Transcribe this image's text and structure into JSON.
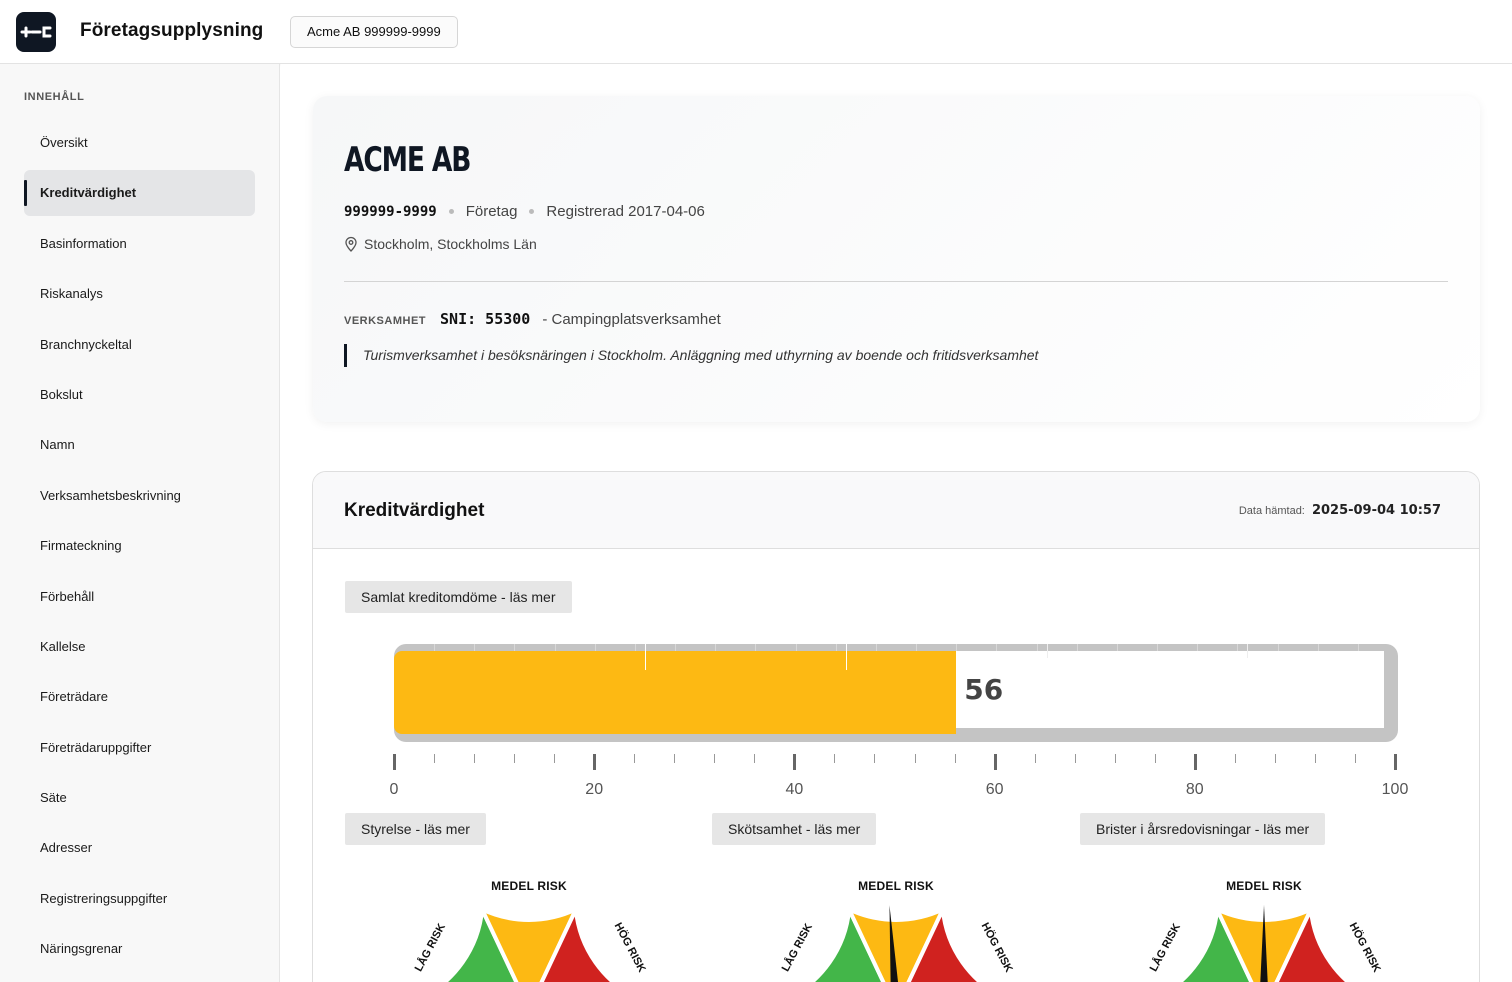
{
  "header": {
    "app_title": "Företagsupplysning",
    "company_chip": "Acme AB 999999-9999"
  },
  "sidebar": {
    "heading": "INNEHÅLL",
    "active_index": 1,
    "items": [
      {
        "label": "Översikt"
      },
      {
        "label": "Kreditvärdighet"
      },
      {
        "label": "Basinformation"
      },
      {
        "label": "Riskanalys"
      },
      {
        "label": "Branchnyckeltal"
      },
      {
        "label": "Bokslut"
      },
      {
        "label": "Namn"
      },
      {
        "label": "Verksamhetsbeskrivning"
      },
      {
        "label": "Firmateckning"
      },
      {
        "label": "Förbehåll"
      },
      {
        "label": "Kallelse"
      },
      {
        "label": "Företrädare"
      },
      {
        "label": "Företrädaruppgifter"
      },
      {
        "label": "Säte"
      },
      {
        "label": "Adresser"
      },
      {
        "label": "Registreringsuppgifter"
      },
      {
        "label": "Näringsgrenar"
      }
    ]
  },
  "company": {
    "name": "ACME AB",
    "org_nr": "999999-9999",
    "type": "Företag",
    "registered": "Registrerad 2017-04-06",
    "location": "Stockholm, Stockholms Län",
    "verksamhet_label": "VERKSAMHET",
    "sni": "SNI: 55300",
    "sni_description": "- Campingplatsverksamhet",
    "description": "Turismverksamhet i besöksnäringen i Stockholm. Anläggning med uthyrning av boende och fritidsverksamhet"
  },
  "kredit": {
    "title": "Kreditvärdighet",
    "fetched_label": "Data hämtad:",
    "fetched_value": "2025-09-04 10:57",
    "overall_button": "Samlat kreditomdöme - läs mer",
    "score": 56,
    "score_label": "56",
    "scale_max": 100,
    "scale_labels": [
      "0",
      "20",
      "40",
      "60",
      "80",
      "100"
    ],
    "fill_color": "#fdb913",
    "sub_gauges": [
      {
        "button": "Styrelse - läs mer",
        "title": "MEDEL RISK",
        "low": "LÅG RISK",
        "high": "HÖG RISK",
        "needle": null
      },
      {
        "button": "Skötsamhet - läs mer",
        "title": "MEDEL RISK",
        "low": "LÅG RISK",
        "high": "HÖG RISK",
        "needle": 0.48
      },
      {
        "button": "Brister i årsredovisningar - läs mer",
        "title": "MEDEL RISK",
        "low": "LÅG RISK",
        "high": "HÖG RISK",
        "needle": 0.5
      }
    ],
    "colors": {
      "low": "#43b649",
      "medium": "#fdb913",
      "high": "#d0221f"
    }
  }
}
